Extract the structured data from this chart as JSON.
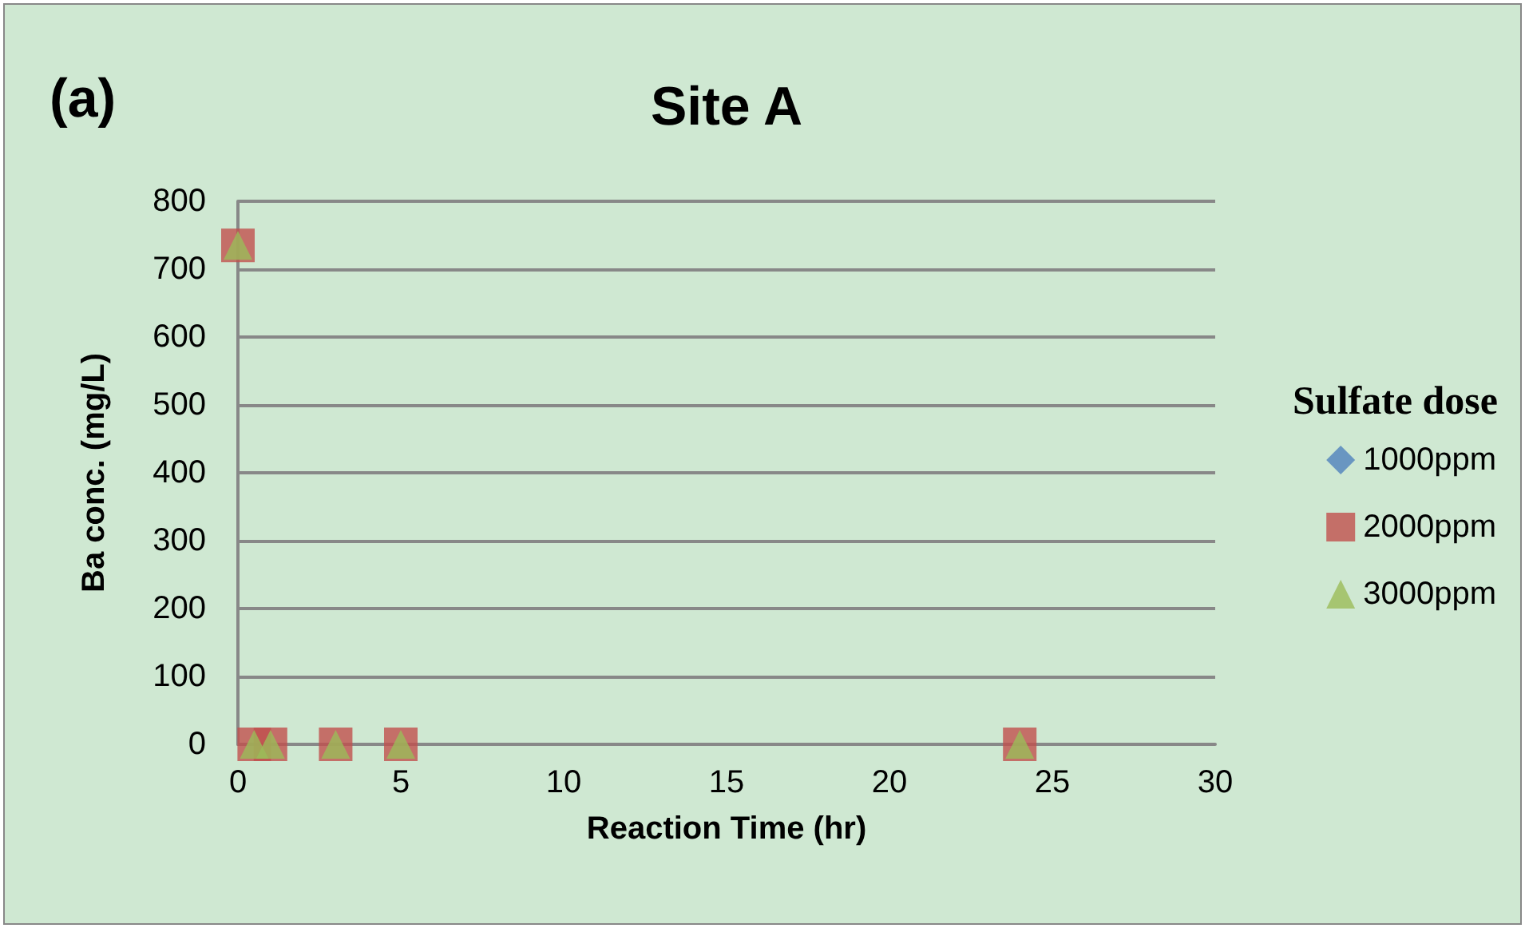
{
  "chart_data": {
    "type": "scatter",
    "title": "Site A",
    "annotations": [
      "(a)"
    ],
    "xlabel": "Reaction Time (hr)",
    "ylabel": "Ba conc. (mg/L)",
    "legend_title": "Sulfate dose",
    "legend": "right",
    "grid": "y",
    "xlim": [
      0,
      30
    ],
    "xticks": [
      0,
      5,
      10,
      15,
      20,
      25,
      30
    ],
    "ylim": [
      0,
      800
    ],
    "yticks": [
      0,
      100,
      200,
      300,
      400,
      500,
      600,
      700,
      800
    ],
    "x": [
      0,
      0.5,
      1,
      3,
      5,
      24
    ],
    "series": [
      {
        "name": "1000ppm",
        "color": "#4f81bd",
        "marker": "diamond",
        "values": [
          null,
          null,
          null,
          null,
          null,
          null
        ]
      },
      {
        "name": "2000ppm",
        "color": "#c0504d",
        "marker": "square",
        "values": [
          735,
          0,
          0,
          0,
          0,
          0
        ]
      },
      {
        "name": "3000ppm",
        "color": "#9bbb59",
        "marker": "triangle",
        "values": [
          735,
          0,
          0,
          0,
          0,
          0
        ]
      }
    ]
  }
}
